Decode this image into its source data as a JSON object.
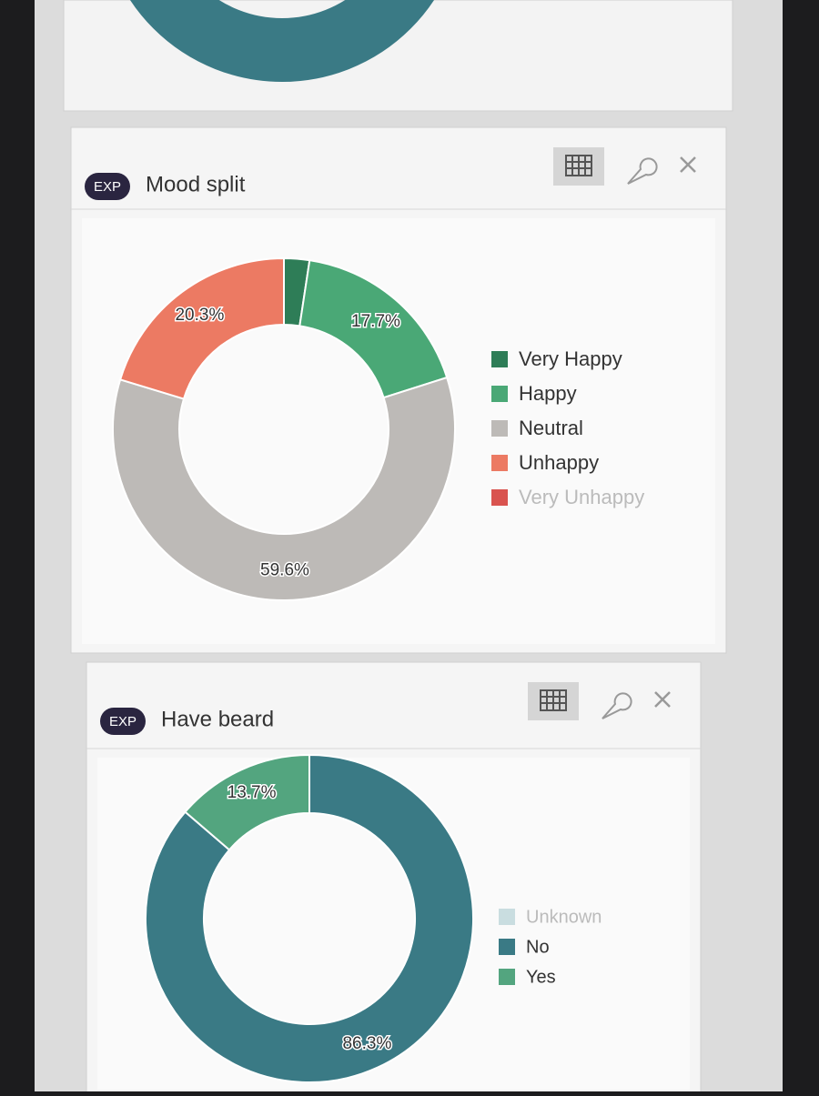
{
  "chart_data": [
    {
      "type": "donut",
      "badge": "EXP",
      "title": "Mood split",
      "categories": [
        "Very Happy",
        "Happy",
        "Neutral",
        "Unhappy",
        "Very Unhappy"
      ],
      "values": [
        2.4,
        17.7,
        59.6,
        20.3,
        0
      ],
      "value_labels": [
        null,
        "17.7%",
        "59.6%",
        "20.3%",
        null
      ],
      "colors": [
        "#2e7d57",
        "#4aa876",
        "#bdbab7",
        "#ec7a63",
        "#d9534f"
      ]
    },
    {
      "type": "donut",
      "badge": "EXP",
      "title": "Have beard",
      "categories": [
        "Unknown",
        "No",
        "Yes"
      ],
      "values": [
        0,
        86.3,
        13.7
      ],
      "value_labels": [
        null,
        "86.3%",
        "13.7%"
      ],
      "colors": [
        "#c9dde0",
        "#3a7a85",
        "#53a57f"
      ]
    }
  ]
}
